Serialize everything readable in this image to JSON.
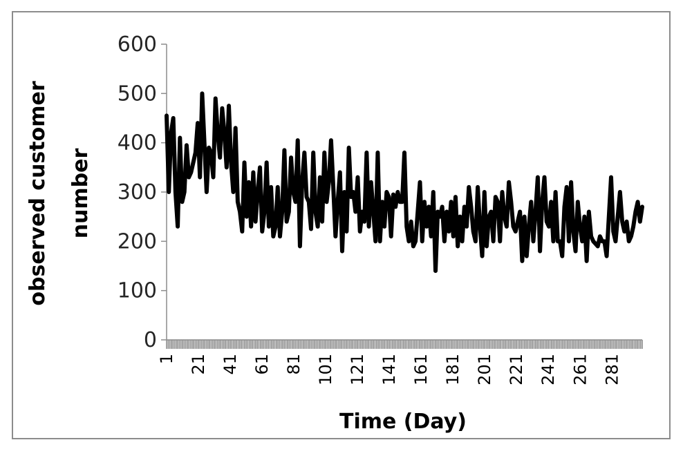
{
  "chart_data": {
    "type": "line",
    "xlabel": "Time (Day)",
    "ylabel_lines": [
      "observed  customer",
      "number"
    ],
    "ylim": [
      0,
      600
    ],
    "y_ticks": [
      0,
      100,
      200,
      300,
      400,
      500,
      600
    ],
    "x_range": [
      1,
      300
    ],
    "x_tick_labels": [
      1,
      21,
      41,
      61,
      81,
      101,
      121,
      141,
      161,
      181,
      201,
      221,
      241,
      261,
      281
    ],
    "grid": false,
    "legend": "none",
    "line_color": "#000000",
    "tick_mark_color": "#8c8c8c",
    "series": [
      {
        "values": [
          455,
          300,
          420,
          450,
          300,
          230,
          410,
          280,
          300,
          395,
          330,
          340,
          360,
          380,
          440,
          330,
          500,
          400,
          300,
          390,
          380,
          330,
          490,
          420,
          370,
          470,
          420,
          350,
          475,
          360,
          300,
          430,
          280,
          260,
          220,
          360,
          250,
          320,
          230,
          340,
          240,
          300,
          350,
          220,
          260,
          360,
          230,
          310,
          210,
          230,
          310,
          210,
          260,
          385,
          240,
          260,
          370,
          300,
          280,
          405,
          190,
          320,
          380,
          290,
          280,
          225,
          380,
          260,
          230,
          330,
          240,
          380,
          280,
          320,
          405,
          310,
          210,
          280,
          340,
          180,
          300,
          220,
          390,
          290,
          300,
          260,
          330,
          220,
          260,
          240,
          380,
          230,
          320,
          260,
          200,
          380,
          200,
          280,
          230,
          300,
          290,
          210,
          295,
          270,
          300,
          280,
          280,
          380,
          230,
          200,
          240,
          190,
          200,
          260,
          320,
          200,
          280,
          230,
          270,
          210,
          300,
          140,
          260,
          250,
          270,
          200,
          260,
          220,
          280,
          210,
          290,
          190,
          250,
          200,
          270,
          230,
          310,
          270,
          220,
          200,
          310,
          230,
          170,
          300,
          190,
          250,
          260,
          200,
          290,
          280,
          200,
          300,
          250,
          230,
          320,
          280,
          230,
          220,
          240,
          260,
          160,
          250,
          170,
          230,
          280,
          200,
          260,
          330,
          180,
          280,
          330,
          240,
          230,
          280,
          200,
          300,
          200,
          200,
          170,
          270,
          310,
          200,
          320,
          220,
          180,
          280,
          230,
          200,
          250,
          160,
          260,
          210,
          200,
          195,
          190,
          210,
          200,
          200,
          170,
          250,
          330,
          220,
          200,
          250,
          300,
          240,
          220,
          240,
          200,
          210,
          230,
          260,
          280,
          240,
          270
        ]
      }
    ]
  }
}
